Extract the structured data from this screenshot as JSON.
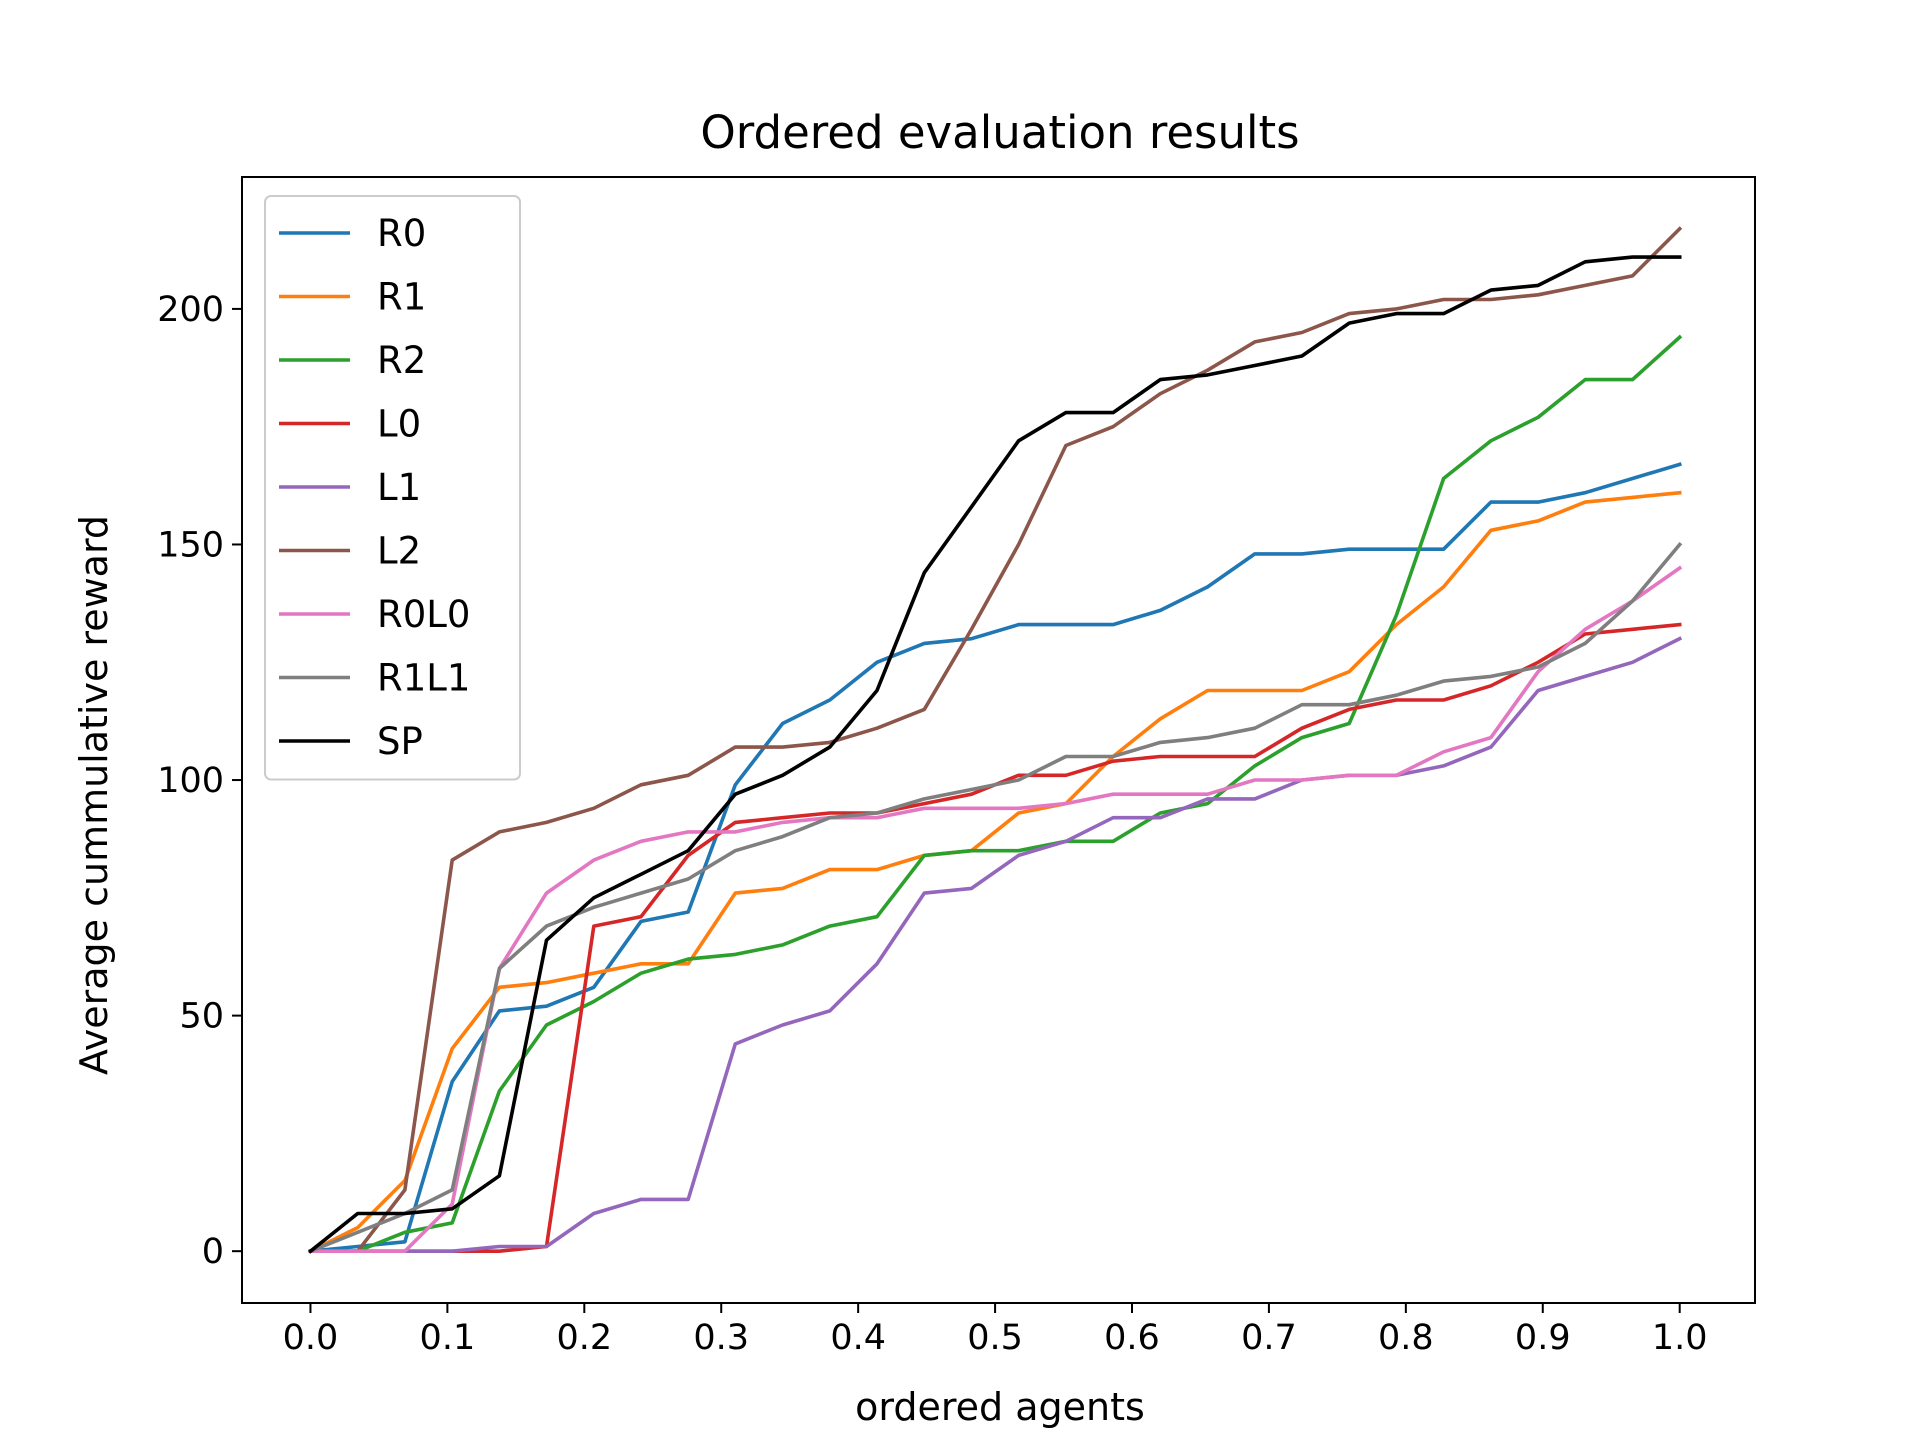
{
  "chart_data": {
    "type": "line",
    "title": "Ordered evaluation results",
    "xlabel": "ordered agents",
    "ylabel": "Average cummulative reward",
    "xlim": [
      -0.05,
      1.055
    ],
    "ylim": [
      -11,
      228
    ],
    "xticks": [
      0.0,
      0.1,
      0.2,
      0.3,
      0.4,
      0.5,
      0.6,
      0.7,
      0.8,
      0.9,
      1.0
    ],
    "xtick_labels": [
      "0.0",
      "0.1",
      "0.2",
      "0.3",
      "0.4",
      "0.5",
      "0.6",
      "0.7",
      "0.8",
      "0.9",
      "1.0"
    ],
    "yticks": [
      0,
      50,
      100,
      150,
      200
    ],
    "ytick_labels": [
      "0",
      "50",
      "100",
      "150",
      "200"
    ],
    "grid": false,
    "legend_position": "upper-left",
    "x": [
      0.0,
      0.0345,
      0.069,
      0.1035,
      0.138,
      0.1724,
      0.2069,
      0.2414,
      0.2759,
      0.3103,
      0.3448,
      0.3793,
      0.4138,
      0.4483,
      0.4828,
      0.5172,
      0.5517,
      0.5862,
      0.6207,
      0.6552,
      0.6897,
      0.7241,
      0.7586,
      0.7931,
      0.8276,
      0.8621,
      0.8966,
      0.931,
      0.9655,
      1.0
    ],
    "series": [
      {
        "name": "R0",
        "color": "#1f77b4",
        "values": [
          0,
          1,
          2,
          36,
          51,
          52,
          56,
          70,
          72,
          99,
          112,
          117,
          125,
          129,
          130,
          133,
          133,
          133,
          136,
          141,
          148,
          148,
          149,
          149,
          149,
          159,
          159,
          161,
          164,
          167
        ]
      },
      {
        "name": "R1",
        "color": "#ff7f0e",
        "values": [
          0,
          5,
          15,
          43,
          56,
          57,
          59,
          61,
          61,
          76,
          77,
          81,
          81,
          84,
          85,
          93,
          95,
          105,
          113,
          119,
          119,
          119,
          123,
          133,
          141,
          153,
          155,
          159,
          160,
          161
        ]
      },
      {
        "name": "R2",
        "color": "#2ca02c",
        "values": [
          0,
          0,
          4,
          6,
          34,
          48,
          53,
          59,
          62,
          63,
          65,
          69,
          71,
          84,
          85,
          85,
          87,
          87,
          93,
          95,
          103,
          109,
          112,
          135,
          164,
          172,
          177,
          185,
          185,
          194
        ]
      },
      {
        "name": "L0",
        "color": "#d62728",
        "values": [
          0,
          0,
          0,
          0,
          0,
          1,
          69,
          71,
          84,
          91,
          92,
          93,
          93,
          95,
          97,
          101,
          101,
          104,
          105,
          105,
          105,
          111,
          115,
          117,
          117,
          120,
          125,
          131,
          132,
          133
        ]
      },
      {
        "name": "L1",
        "color": "#9467bd",
        "values": [
          0,
          0,
          0,
          0,
          1,
          1,
          8,
          11,
          11,
          44,
          48,
          51,
          61,
          76,
          77,
          84,
          87,
          92,
          92,
          96,
          96,
          100,
          101,
          101,
          103,
          107,
          119,
          122,
          125,
          130
        ]
      },
      {
        "name": "L2",
        "color": "#8c564b",
        "values": [
          0,
          0,
          13,
          83,
          89,
          91,
          94,
          99,
          101,
          107,
          107,
          108,
          111,
          115,
          132,
          150,
          171,
          175,
          182,
          187,
          193,
          195,
          199,
          200,
          202,
          202,
          203,
          205,
          207,
          217
        ]
      },
      {
        "name": "R0L0",
        "color": "#e377c2",
        "values": [
          0,
          0,
          0,
          10,
          60,
          76,
          83,
          87,
          89,
          89,
          91,
          92,
          92,
          94,
          94,
          94,
          95,
          97,
          97,
          97,
          100,
          100,
          101,
          101,
          106,
          109,
          123,
          132,
          138,
          145
        ]
      },
      {
        "name": "R1L1",
        "color": "#7f7f7f",
        "values": [
          0,
          4,
          8,
          13,
          60,
          69,
          73,
          76,
          79,
          85,
          88,
          92,
          93,
          96,
          98,
          100,
          105,
          105,
          108,
          109,
          111,
          116,
          116,
          118,
          121,
          122,
          124,
          129,
          138,
          150
        ]
      },
      {
        "name": "SP",
        "color": "#000000",
        "values": [
          0,
          8,
          8,
          9,
          16,
          66,
          75,
          80,
          85,
          97,
          101,
          107,
          119,
          144,
          158,
          172,
          178,
          178,
          185,
          186,
          188,
          190,
          197,
          199,
          199,
          204,
          205,
          210,
          211,
          211
        ]
      }
    ]
  }
}
